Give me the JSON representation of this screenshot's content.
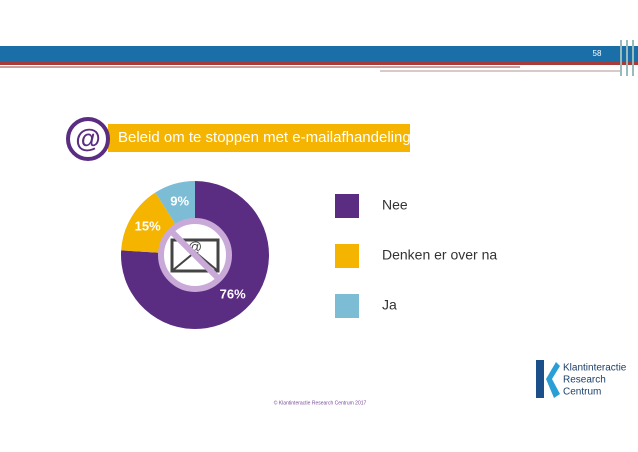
{
  "slide_number": "58",
  "footer": "© Klantinteractie Research Centrum 2017",
  "logo": [
    "Klantinteractie",
    "Research",
    "Centrum"
  ],
  "chart_data": {
    "type": "pie",
    "donut": true,
    "title": "Beleid om te stoppen met e-mailafhandeling",
    "categories": [
      "Nee",
      "Denken er over na",
      "Ja"
    ],
    "values": [
      76,
      15,
      9
    ],
    "value_labels": [
      "76%",
      "15%",
      "9%"
    ],
    "colors": [
      "#5b2d82",
      "#f5b400",
      "#7cbdd5"
    ]
  }
}
